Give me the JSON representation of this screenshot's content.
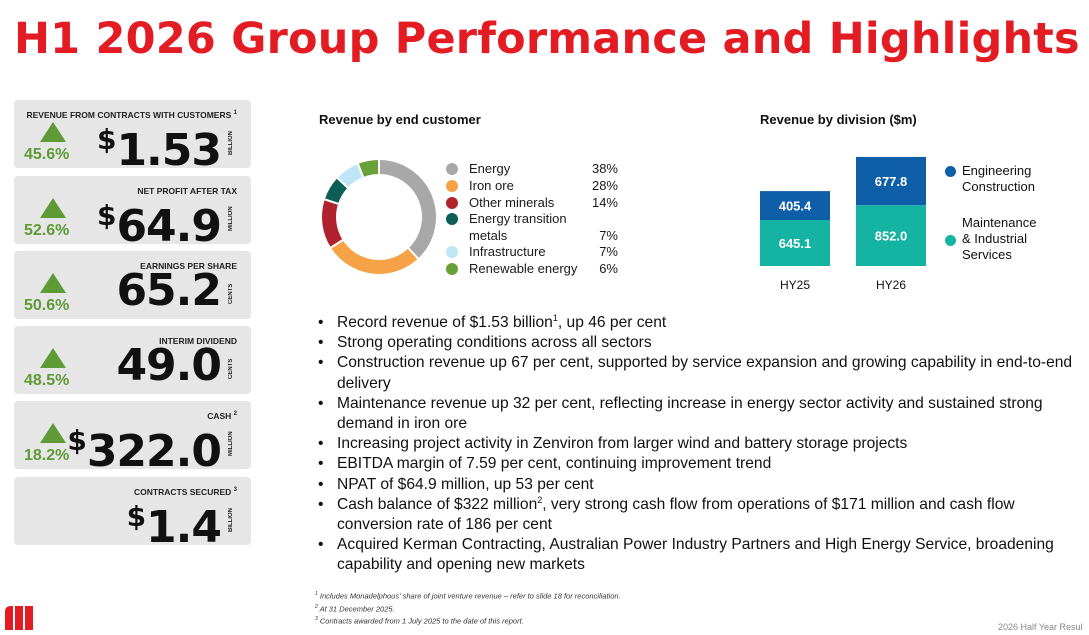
{
  "title": "H1 2026 Group Performance and Highlights",
  "colors": {
    "brand_red": "#e31b23",
    "kpi_green": "#5e9a35",
    "bar_blue": "#0f5ea8",
    "bar_teal": "#14b3a2"
  },
  "kpis": [
    {
      "label": "Revenue from contracts with customers",
      "note": "1",
      "change": "45.6%",
      "currency": "$",
      "value": "1.53",
      "unit": "BILLION"
    },
    {
      "label": "Net profit after tax",
      "note": "",
      "change": "52.6%",
      "currency": "$",
      "value": "64.9",
      "unit": "MILLION"
    },
    {
      "label": "Earnings per share",
      "note": "",
      "change": "50.6%",
      "currency": "",
      "value": "65.2",
      "unit": "CENTS"
    },
    {
      "label": "Interim dividend",
      "note": "",
      "change": "48.5%",
      "currency": "",
      "value": "49.0",
      "unit": "CENTS"
    },
    {
      "label": "Cash",
      "note": "2",
      "change": "18.2%",
      "currency": "$",
      "value": "322.0",
      "unit": "MILLION"
    },
    {
      "label": "Contracts secured",
      "note": "3",
      "change": "",
      "currency": "$",
      "value": "1.4",
      "unit": "BILLION"
    }
  ],
  "chart_data": [
    {
      "type": "pie",
      "title": "Revenue by end customer",
      "slices": [
        {
          "name": "Energy",
          "label": "38%",
          "value": 38,
          "color": "#a8a8a8"
        },
        {
          "name": "Iron ore",
          "label": "28%",
          "value": 28,
          "color": "#f5a346"
        },
        {
          "name": "Other minerals",
          "label": "14%",
          "value": 14,
          "color": "#b0222e"
        },
        {
          "name": "Energy transition metals",
          "label": "7%",
          "value": 7,
          "color": "#0d5e54"
        },
        {
          "name": "Infrastructure",
          "label": "7%",
          "value": 7,
          "color": "#bfe6f7"
        },
        {
          "name": "Renewable energy",
          "label": "6%",
          "value": 6,
          "color": "#6aa03a"
        }
      ]
    },
    {
      "type": "bar",
      "stacked": true,
      "title": "Revenue by division ($m)",
      "categories": [
        "HY25",
        "HY26"
      ],
      "series": [
        {
          "name": "Maintenance & Industrial Services",
          "values": [
            645.1,
            852.0
          ],
          "labels": [
            "645.1",
            "852.0"
          ],
          "color": "#14b3a2"
        },
        {
          "name": "Engineering Construction",
          "values": [
            405.4,
            677.8
          ],
          "labels": [
            "405.4",
            "677.8"
          ],
          "color": "#0f5ea8"
        }
      ]
    }
  ],
  "legend_division": {
    "eng_line1": "Engineering",
    "eng_line2": "Construction",
    "mis_line1": "Maintenance",
    "mis_line2": "& Industrial",
    "mis_line3": "Services"
  },
  "bullets": [
    {
      "text": "Record revenue of $1.53 billion",
      "sup": "1",
      "after": ", up 46 per cent"
    },
    {
      "text": "Strong operating conditions across all sectors"
    },
    {
      "text": "Construction revenue up 67 per cent, supported by service expansion and growing capability in end-to-end delivery"
    },
    {
      "text": "Maintenance revenue up 32 per cent, reflecting increase in energy sector activity and sustained strong demand in iron ore"
    },
    {
      "text": "Increasing project activity in Zenviron from larger wind and battery storage projects"
    },
    {
      "text": "EBITDA margin of 7.59 per cent, continuing improvement trend"
    },
    {
      "text": "NPAT of $64.9 million, up 53 per cent"
    },
    {
      "text": "Cash balance of $322 million",
      "sup": "2",
      "after": ", very strong cash flow from operations of $171 million and cash flow conversion rate of 186 per cent"
    },
    {
      "text": "Acquired Kerman Contracting, Australian Power Industry Partners and High Energy Service, broadening capability and opening new markets"
    }
  ],
  "footnotes": [
    {
      "num": "1",
      "text": "Includes Monadelphous' share of joint venture revenue – refer to slide 18 for reconciliation."
    },
    {
      "num": "2",
      "text": "At 31 December 2025."
    },
    {
      "num": "3",
      "text": "Contracts awarded from 1 July 2025 to the date of this report."
    }
  ],
  "page_info": "2026 Half Year Resul"
}
